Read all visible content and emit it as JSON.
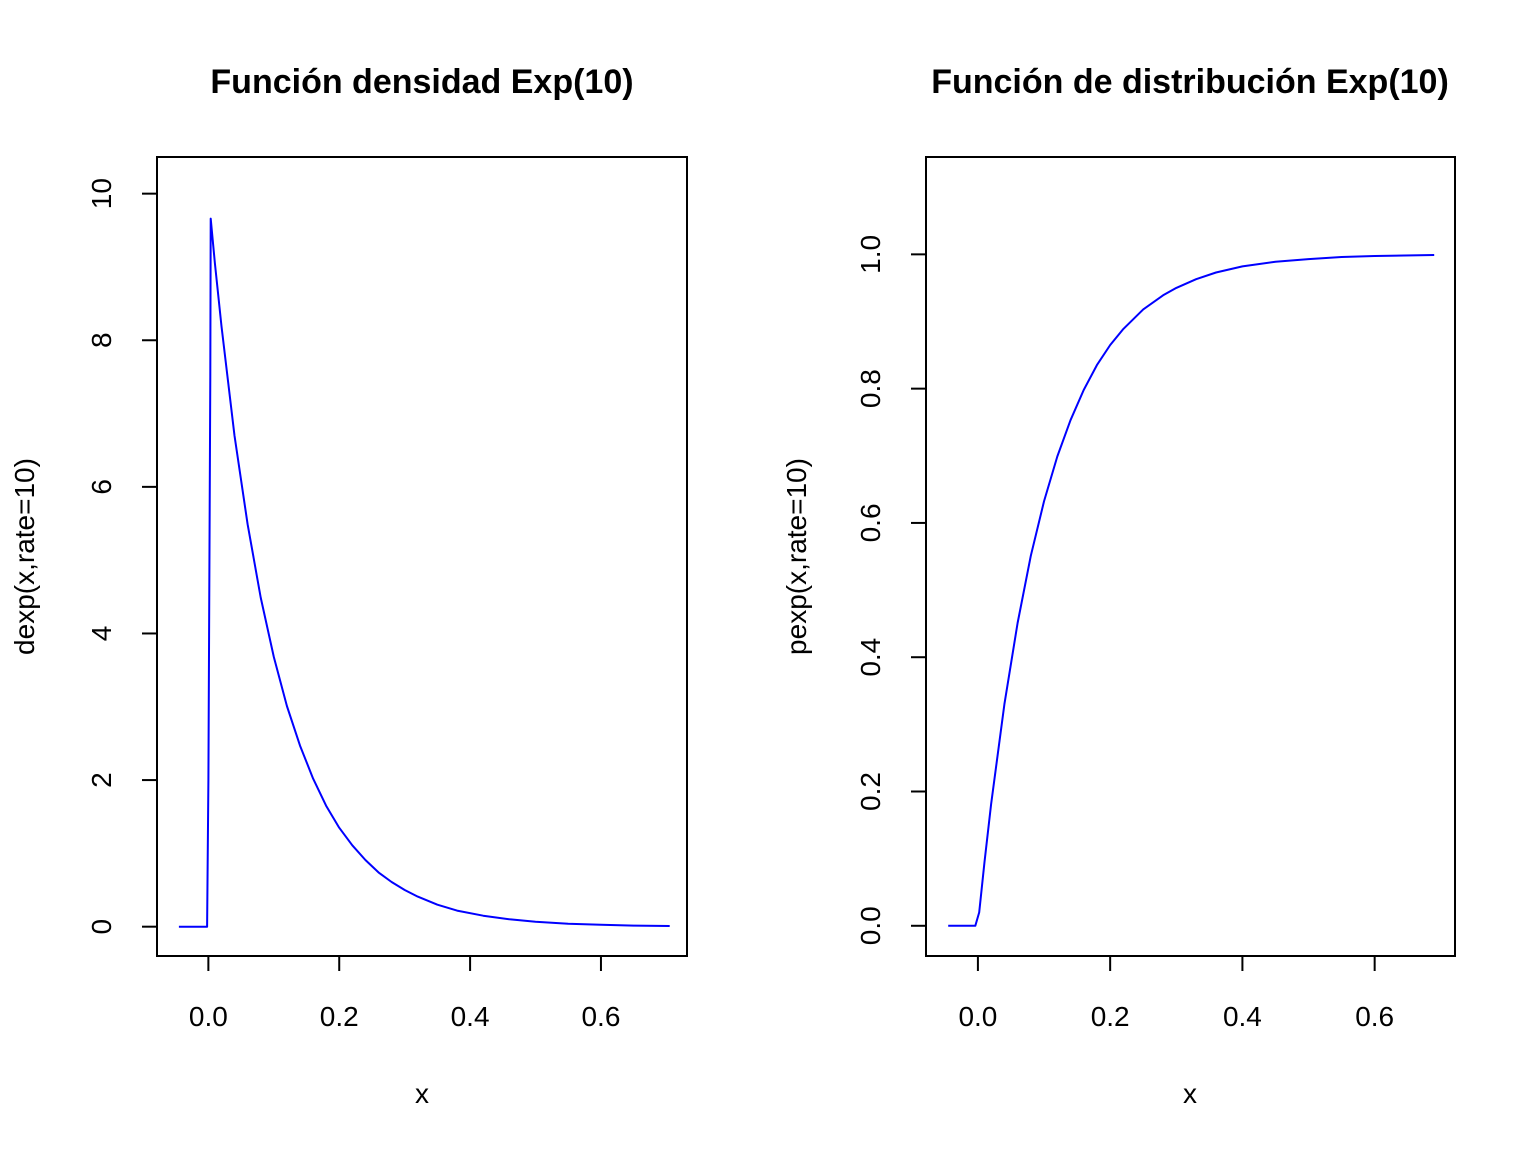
{
  "chart_data": [
    {
      "type": "line",
      "title": "Función densidad Exp(10)",
      "xlabel": "x",
      "ylabel": "dexp(x,rate=10)",
      "xlim": [
        -0.0785,
        0.7315
      ],
      "ylim": [
        -0.4,
        10.5
      ],
      "x_ticks": [
        0.0,
        0.2,
        0.4,
        0.6
      ],
      "x_tick_labels": [
        "0.0",
        "0.2",
        "0.4",
        "0.6"
      ],
      "y_ticks": [
        0,
        2,
        4,
        6,
        8,
        10
      ],
      "y_tick_labels": [
        "0",
        "2",
        "4",
        "6",
        "8",
        "10"
      ],
      "grid": false,
      "line_color": "#0000ff",
      "series": [
        {
          "x": [
            -0.045,
            -0.002,
            0.0,
            0.003,
            0.0035,
            0.01,
            0.02,
            0.04,
            0.06,
            0.08,
            0.1,
            0.12,
            0.14,
            0.16,
            0.18,
            0.2,
            0.22,
            0.24,
            0.26,
            0.28,
            0.3,
            0.32,
            0.35,
            0.38,
            0.42,
            0.46,
            0.5,
            0.55,
            0.6,
            0.65,
            0.705
          ],
          "y": [
            0,
            0,
            2.0,
            7.5,
            9.66,
            9.05,
            8.19,
            6.7,
            5.49,
            4.49,
            3.68,
            3.01,
            2.47,
            2.02,
            1.65,
            1.35,
            1.11,
            0.91,
            0.74,
            0.61,
            0.5,
            0.41,
            0.3,
            0.22,
            0.15,
            0.1,
            0.067,
            0.041,
            0.025,
            0.015,
            0.009
          ]
        }
      ]
    },
    {
      "type": "line",
      "title": "Función de distribución Exp(10)",
      "xlabel": "x",
      "ylabel": "pexp(x,rate=10)",
      "xlim": [
        -0.0785,
        0.7215
      ],
      "ylim": [
        -0.045,
        1.145
      ],
      "x_ticks": [
        0.0,
        0.2,
        0.4,
        0.6
      ],
      "x_tick_labels": [
        "0.0",
        "0.2",
        "0.4",
        "0.6"
      ],
      "y_ticks": [
        0.0,
        0.2,
        0.4,
        0.6,
        0.8,
        1.0
      ],
      "y_tick_labels": [
        "0.0",
        "0.2",
        "0.4",
        "0.6",
        "0.8",
        "1.0"
      ],
      "grid": false,
      "line_color": "#0000ff",
      "series": [
        {
          "x": [
            -0.045,
            -0.004,
            0.002,
            0.01,
            0.02,
            0.04,
            0.06,
            0.08,
            0.1,
            0.12,
            0.14,
            0.16,
            0.18,
            0.2,
            0.22,
            0.25,
            0.28,
            0.3,
            0.33,
            0.36,
            0.4,
            0.45,
            0.5,
            0.55,
            0.6,
            0.69
          ],
          "y": [
            0,
            0,
            0.02,
            0.095,
            0.181,
            0.33,
            0.451,
            0.551,
            0.632,
            0.699,
            0.753,
            0.798,
            0.835,
            0.865,
            0.889,
            0.918,
            0.939,
            0.95,
            0.963,
            0.973,
            0.982,
            0.989,
            0.993,
            0.996,
            0.9975,
            0.999
          ]
        }
      ]
    }
  ]
}
